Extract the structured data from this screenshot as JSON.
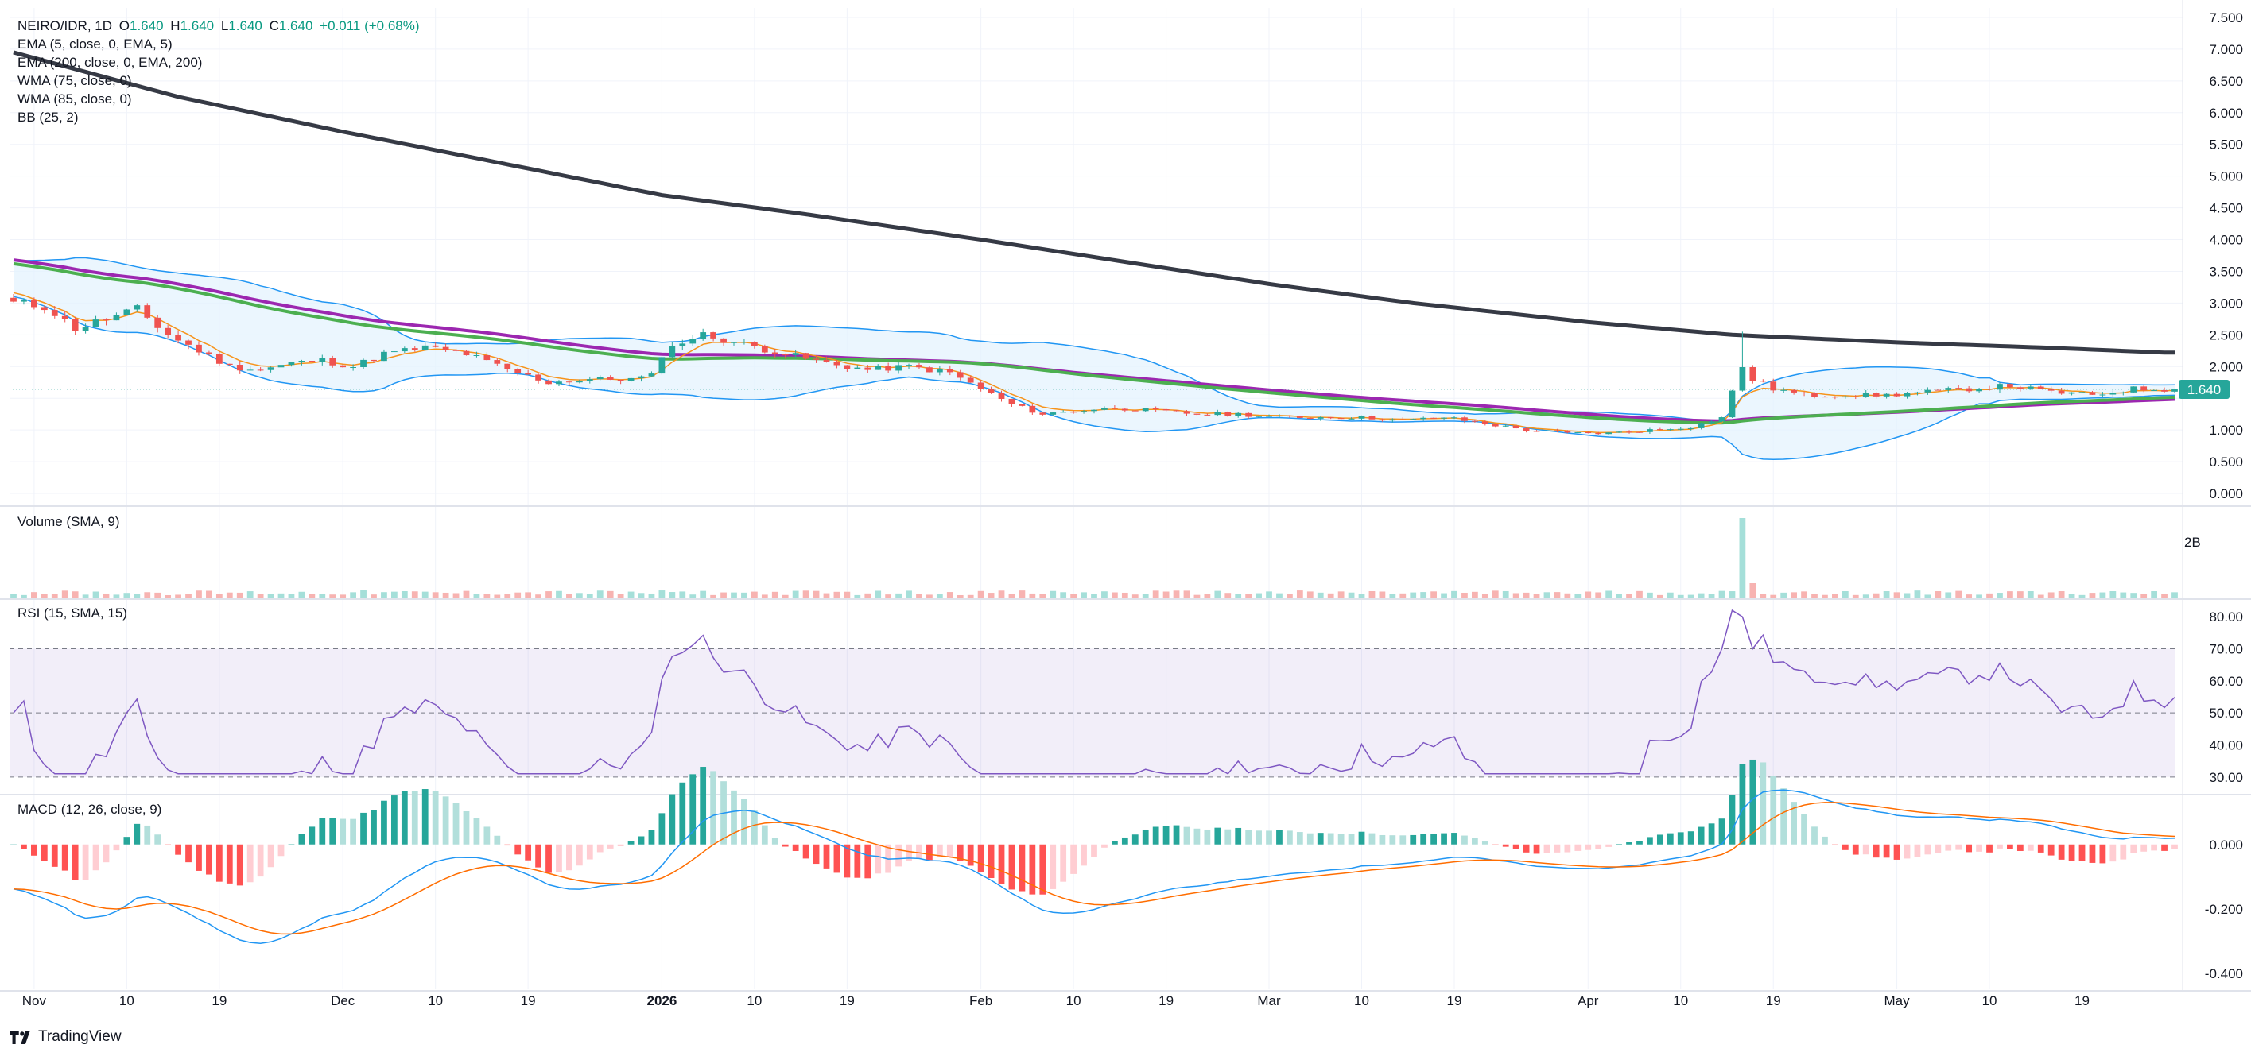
{
  "header": {
    "symbol": "NEIRO/IDR, 1D",
    "o_label": "O",
    "o_value": "1.640",
    "h_label": "H",
    "h_value": "1.640",
    "l_label": "L",
    "l_value": "1.640",
    "c_label": "C",
    "c_value": "1.640",
    "change": "+0.011 (+0.68%)"
  },
  "indicators": [
    "EMA (5, close, 0, EMA, 5)",
    "EMA (200, close, 0, EMA, 200)",
    "WMA (75, close, 0)",
    "WMA (85, close, 0)",
    "BB (25, 2)"
  ],
  "panes": {
    "volume_title": "Volume (SMA, 9)",
    "rsi_title": "RSI (15, SMA, 15)",
    "macd_title": "MACD (12, 26, close, 9)"
  },
  "brand": "TradingView",
  "colors": {
    "up": "#26a69a",
    "down": "#ef5350",
    "ema5": "#f7931a",
    "ema200": "#363a45",
    "wma75": "#4caf50",
    "wma85": "#9c27b0",
    "bb": "#2196f3",
    "bb_fill": "#e3f2fd",
    "rsi": "#7e57c2",
    "macd": "#2196f3",
    "signal": "#ff6d00",
    "price_tag": "#26a69a"
  },
  "chart_data": {
    "type": "candlestick",
    "x_start": "2025-10-30",
    "x_tick_labels": [
      {
        "label": "Nov",
        "date": "2025-11-01"
      },
      {
        "label": "10",
        "date": "2025-11-10"
      },
      {
        "label": "19",
        "date": "2025-11-19"
      },
      {
        "label": "Dec",
        "date": "2025-12-01"
      },
      {
        "label": "10",
        "date": "2025-12-10"
      },
      {
        "label": "19",
        "date": "2025-12-19"
      },
      {
        "label": "2026",
        "date": "2026-01-01",
        "bold": true
      },
      {
        "label": "10",
        "date": "2026-01-10"
      },
      {
        "label": "19",
        "date": "2026-01-19"
      },
      {
        "label": "Feb",
        "date": "2026-02-01"
      },
      {
        "label": "10",
        "date": "2026-02-10"
      },
      {
        "label": "19",
        "date": "2026-02-19"
      },
      {
        "label": "Mar",
        "date": "2026-03-01"
      },
      {
        "label": "10",
        "date": "2026-03-10"
      },
      {
        "label": "19",
        "date": "2026-03-19"
      },
      {
        "label": "Apr",
        "date": "2026-04-01"
      },
      {
        "label": "10",
        "date": "2026-04-10"
      },
      {
        "label": "19",
        "date": "2026-04-19"
      },
      {
        "label": "May",
        "date": "2026-05-01"
      },
      {
        "label": "10",
        "date": "2026-05-10"
      },
      {
        "label": "19",
        "date": "2026-05-19"
      }
    ],
    "price_axis": {
      "min": 0,
      "max": 7.5,
      "ticks": [
        "0.000",
        "0.500",
        "1.000",
        "1.500",
        "2.000",
        "2.500",
        "3.000",
        "3.500",
        "4.000",
        "4.500",
        "5.000",
        "5.500",
        "6.000",
        "6.500",
        "7.000",
        "7.500"
      ]
    },
    "last_price": "1.640",
    "price_key_dates": [
      "2025-10-30",
      "2025-11-02",
      "2025-11-05",
      "2025-11-08",
      "2025-11-11",
      "2025-11-14",
      "2025-11-17",
      "2025-11-20",
      "2025-11-23",
      "2025-11-26",
      "2025-11-29",
      "2025-12-02",
      "2025-12-05",
      "2025-12-09",
      "2025-12-13",
      "2025-12-17",
      "2025-12-21",
      "2025-12-25",
      "2025-12-29",
      "2025-12-31",
      "2026-01-01",
      "2026-01-03",
      "2026-01-05",
      "2026-01-09",
      "2026-01-13",
      "2026-01-17",
      "2026-01-21",
      "2026-01-25",
      "2026-01-29",
      "2026-02-01",
      "2026-02-04",
      "2026-02-07",
      "2026-02-10",
      "2026-02-14",
      "2026-02-18",
      "2026-02-22",
      "2026-02-26",
      "2026-03-02",
      "2026-03-06",
      "2026-03-10",
      "2026-03-14",
      "2026-03-18",
      "2026-03-22",
      "2026-03-26",
      "2026-03-30",
      "2026-04-03",
      "2026-04-07",
      "2026-04-11",
      "2026-04-14",
      "2026-04-16",
      "2026-04-17",
      "2026-04-19",
      "2026-04-22",
      "2026-04-26",
      "2026-04-30",
      "2026-05-04",
      "2026-05-08",
      "2026-05-12",
      "2026-05-16",
      "2026-05-20",
      "2026-05-24",
      "2026-05-27"
    ],
    "price_key_values": [
      3.0,
      2.95,
      2.6,
      2.75,
      2.9,
      2.5,
      2.25,
      2.0,
      1.95,
      2.05,
      2.1,
      2.0,
      2.2,
      2.3,
      2.2,
      1.95,
      1.75,
      1.8,
      1.8,
      1.85,
      2.2,
      2.4,
      2.5,
      2.35,
      2.2,
      2.05,
      1.95,
      2.0,
      1.9,
      1.65,
      1.4,
      1.25,
      1.3,
      1.35,
      1.3,
      1.25,
      1.25,
      1.2,
      1.2,
      1.2,
      1.15,
      1.2,
      1.1,
      1.0,
      0.95,
      0.95,
      1.0,
      1.05,
      1.2,
      2.0,
      1.8,
      1.65,
      1.55,
      1.55,
      1.55,
      1.6,
      1.65,
      1.7,
      1.6,
      1.55,
      1.65,
      1.64
    ],
    "ema200_key_dates": [
      "2025-10-30",
      "2025-11-15",
      "2025-12-01",
      "2025-12-15",
      "2026-01-01",
      "2026-01-15",
      "2026-02-01",
      "2026-02-15",
      "2026-03-01",
      "2026-03-15",
      "2026-04-01",
      "2026-04-15",
      "2026-05-01",
      "2026-05-15",
      "2026-05-27"
    ],
    "ema200_key_values": [
      6.95,
      6.25,
      5.7,
      5.25,
      4.7,
      4.4,
      4.0,
      3.65,
      3.3,
      3.0,
      2.7,
      2.5,
      2.38,
      2.3,
      2.22
    ],
    "volume_axis": {
      "ticks": [
        "2B"
      ]
    },
    "volume_spike_date": "2026-04-16",
    "rsi_axis": {
      "min": 25,
      "max": 85,
      "ticks": [
        "30.00",
        "40.00",
        "50.00",
        "60.00",
        "70.00",
        "80.00"
      ],
      "bands": [
        30,
        50,
        70
      ]
    },
    "macd_axis": {
      "min": -0.45,
      "max": 0.15,
      "ticks": [
        "-0.400",
        "-0.200",
        "0.000"
      ]
    }
  }
}
